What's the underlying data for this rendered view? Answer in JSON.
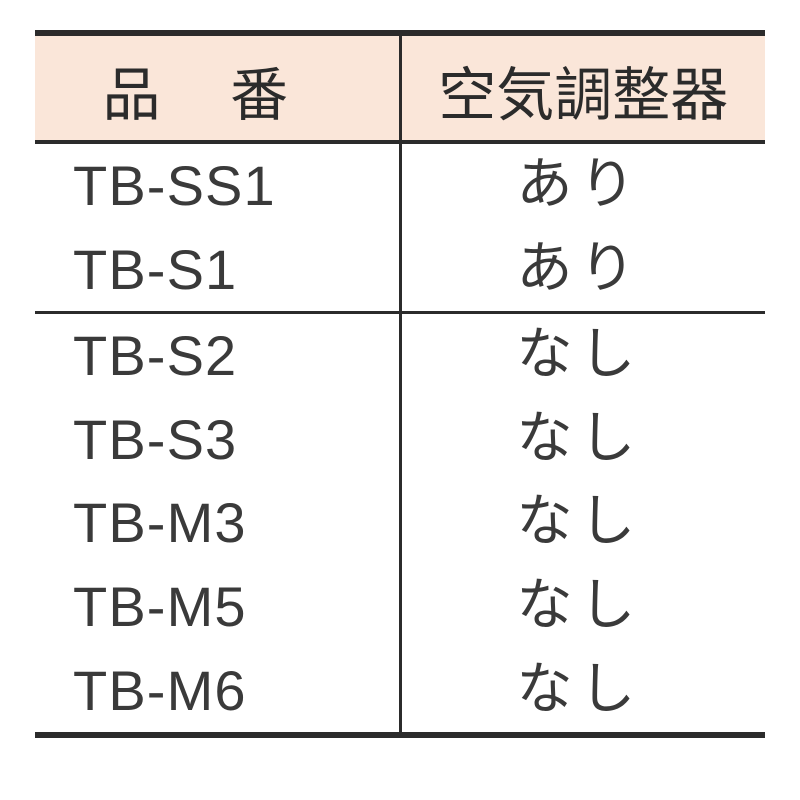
{
  "table": {
    "header_bg": "#fae6d9",
    "border_color": "#2b2b2b",
    "text_color": "#3a3a3a",
    "columns": [
      {
        "label": "品番",
        "width": "50%"
      },
      {
        "label": "空気調整器",
        "width": "50%"
      }
    ],
    "groups": [
      {
        "rows": [
          {
            "code": "TB-SS1",
            "value": "あり"
          },
          {
            "code": "TB-S1",
            "value": "あり"
          }
        ]
      },
      {
        "rows": [
          {
            "code": "TB-S2",
            "value": "なし"
          },
          {
            "code": "TB-S3",
            "value": "なし"
          },
          {
            "code": "TB-M3",
            "value": "なし"
          },
          {
            "code": "TB-M5",
            "value": "なし"
          },
          {
            "code": "TB-M6",
            "value": "なし"
          }
        ]
      }
    ]
  }
}
